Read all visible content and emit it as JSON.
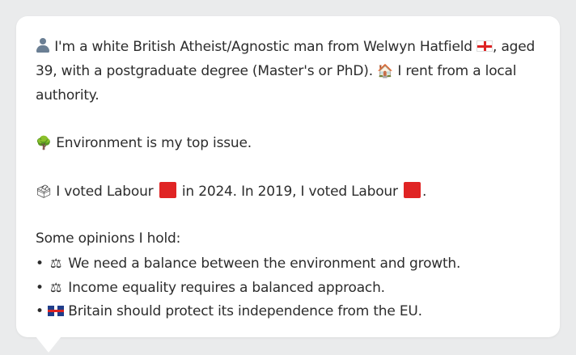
{
  "profile": {
    "line1_a": "I'm a white British Atheist/Agnostic man from Welwyn Hatfield",
    "line1_b": ", aged",
    "line2_a": "39, with a postgraduate degree (Master's or PhD).",
    "line2_b": "I rent from a local",
    "line3": "authority."
  },
  "issue": {
    "text": "Environment is my top issue."
  },
  "vote": {
    "text_a": "I voted Labour",
    "text_b": "in 2024. In 2019, I voted Labour",
    "text_c": "."
  },
  "opinions": {
    "heading": "Some opinions I hold:",
    "bullet": "•",
    "items": [
      "We need a balance between the environment and growth.",
      "Income equality requires a balanced approach.",
      "Britain should protect its independence from the EU."
    ]
  },
  "icons": {
    "person": "person-silhouette-icon",
    "england_flag": "england-flag-icon",
    "house": "house-icon",
    "tree": "tree-icon",
    "ballot": "ballot-box-icon",
    "labour_color": "#e02424",
    "scale": "balance-scale-icon",
    "uk_flag": "uk-flag-icon"
  }
}
